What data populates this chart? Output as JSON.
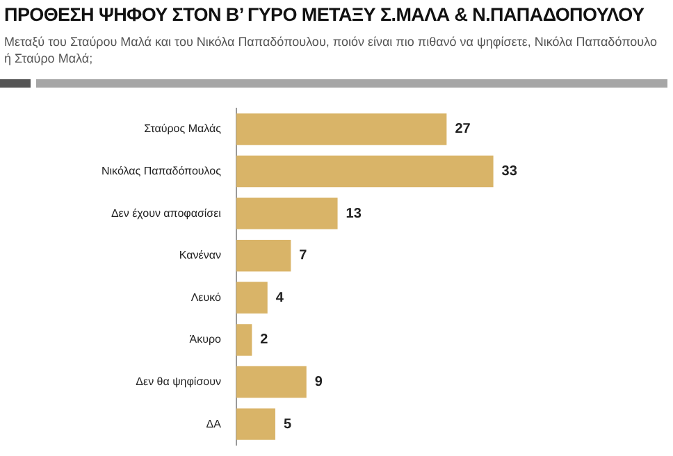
{
  "chart_data": {
    "type": "bar",
    "orientation": "horizontal",
    "title": "ΠΡΟΘΕΣΗ ΨΗΦΟΥ ΣΤΟΝ Β’ ΓΥΡΟ ΜΕΤΑΞΥ Σ.ΜΑΛΑ & Ν.ΠΑΠΑΔΟΠΟΥΛΟΥ",
    "subtitle": "Μεταξύ του Σταύρου Μαλά και του Νικόλα Παπαδόπουλου, ποιόν είναι πιο πιθανό να ψηφίσετε, Νικόλα Παπαδόπουλο ή Σταύρο Μαλά;",
    "categories": [
      "Σταύρος Μαλάς",
      "Νικόλας Παπαδόπουλος",
      "Δεν έχουν αποφασίσει",
      "Κανέναν",
      "Λευκό",
      "Άκυρο",
      "Δεν θα ψηφίσουν",
      "ΔΑ"
    ],
    "values": [
      27,
      33,
      13,
      7,
      4,
      2,
      9,
      5
    ],
    "color": "#d9b468",
    "data_labels": true
  }
}
